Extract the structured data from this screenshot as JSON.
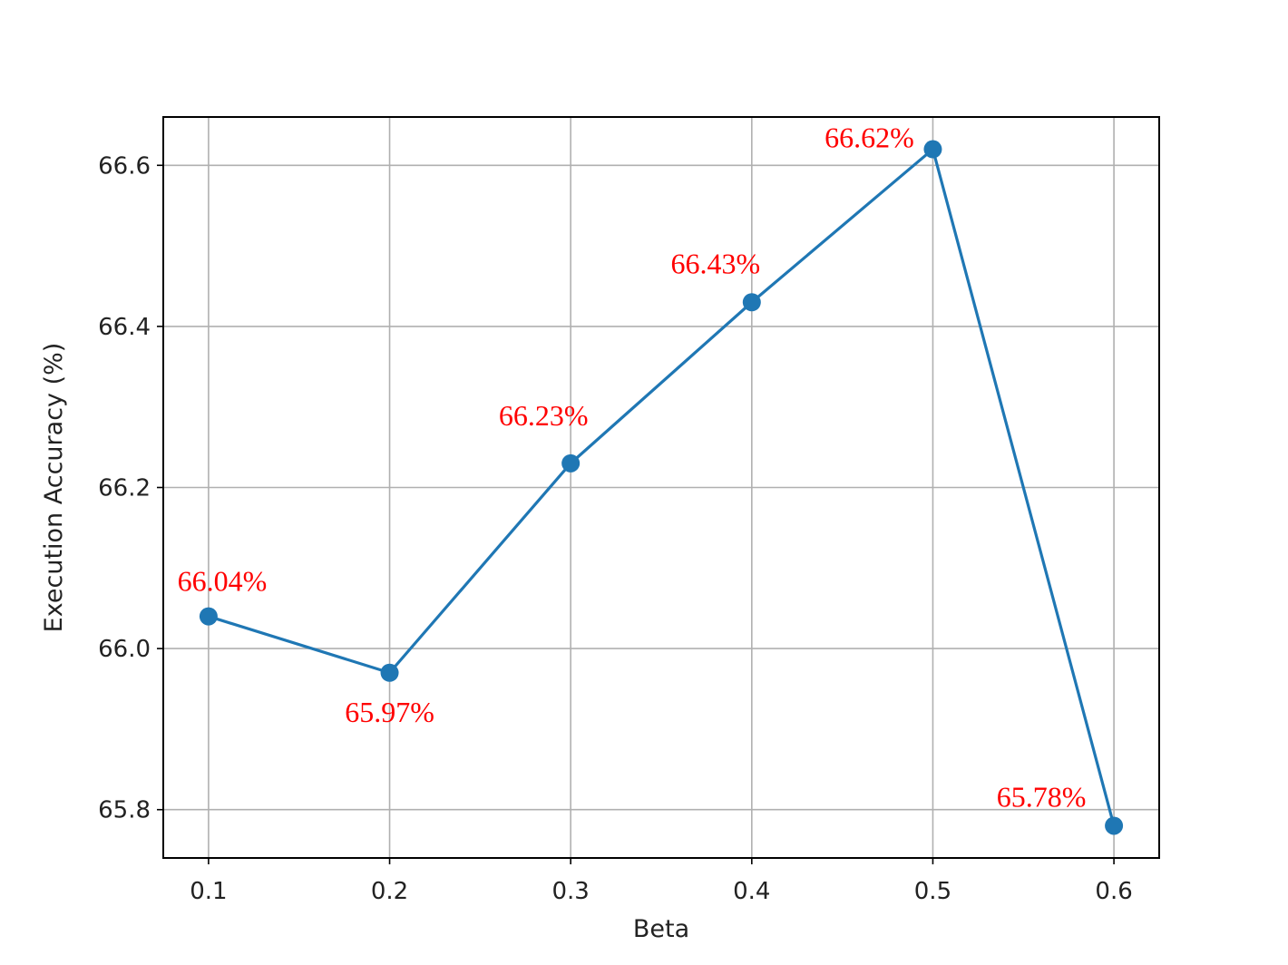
{
  "chart_data": {
    "type": "line",
    "xlabel": "Beta",
    "ylabel": "Execution Accuracy (%)",
    "x": [
      0.1,
      0.2,
      0.3,
      0.4,
      0.5,
      0.6
    ],
    "x_tick_labels": [
      "0.1",
      "0.2",
      "0.3",
      "0.4",
      "0.5",
      "0.6"
    ],
    "y_ticks": [
      65.8,
      66.0,
      66.2,
      66.4,
      66.6
    ],
    "y_tick_labels": [
      "65.8",
      "66.0",
      "66.2",
      "66.4",
      "66.6"
    ],
    "xlim": [
      0.075,
      0.625
    ],
    "ylim": [
      65.74,
      66.66
    ],
    "grid": true,
    "series": [
      {
        "values": [
          66.04,
          65.97,
          66.23,
          66.43,
          66.62,
          65.78
        ],
        "data_labels": [
          "66.04%",
          "65.97%",
          "66.23%",
          "66.43%",
          "66.62%",
          "65.78%"
        ],
        "color": "#1f77b4",
        "marker": "circle"
      }
    ],
    "annotation_color": "#ff0000"
  }
}
